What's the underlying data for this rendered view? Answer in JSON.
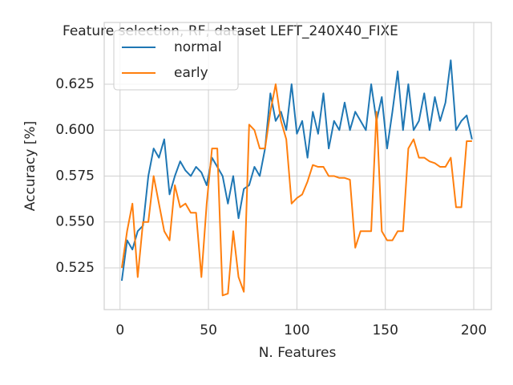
{
  "chart_data": {
    "type": "line",
    "title": "Feature selection, RF, dataset LEFT_240X40_FIXE",
    "x_label": "N. Features",
    "y_label": "Accuracy [%]",
    "x": [
      1,
      4,
      7,
      10,
      13,
      16,
      19,
      22,
      25,
      28,
      31,
      34,
      37,
      40,
      43,
      46,
      49,
      52,
      55,
      58,
      61,
      64,
      67,
      70,
      73,
      76,
      79,
      82,
      85,
      88,
      91,
      94,
      97,
      100,
      103,
      106,
      109,
      112,
      115,
      118,
      121,
      124,
      127,
      130,
      133,
      136,
      139,
      142,
      145,
      148,
      151,
      154,
      157,
      160,
      163,
      166,
      169,
      172,
      175,
      178,
      181,
      184,
      187,
      190,
      193,
      196,
      199
    ],
    "series": [
      {
        "name": "normal",
        "color": "#1f77b4",
        "values": [
          0.518,
          0.54,
          0.535,
          0.545,
          0.548,
          0.575,
          0.59,
          0.585,
          0.595,
          0.565,
          0.575,
          0.583,
          0.578,
          0.575,
          0.58,
          0.577,
          0.57,
          0.585,
          0.58,
          0.575,
          0.56,
          0.575,
          0.552,
          0.568,
          0.57,
          0.58,
          0.575,
          0.59,
          0.62,
          0.605,
          0.61,
          0.6,
          0.625,
          0.598,
          0.605,
          0.585,
          0.61,
          0.598,
          0.62,
          0.59,
          0.605,
          0.6,
          0.615,
          0.6,
          0.61,
          0.605,
          0.6,
          0.625,
          0.605,
          0.618,
          0.59,
          0.61,
          0.632,
          0.6,
          0.625,
          0.6,
          0.605,
          0.62,
          0.6,
          0.618,
          0.605,
          0.615,
          0.638,
          0.6,
          0.605,
          0.608,
          0.595
        ]
      },
      {
        "name": "early",
        "color": "#ff7f0e",
        "values": [
          0.525,
          0.545,
          0.56,
          0.52,
          0.55,
          0.55,
          0.575,
          0.56,
          0.545,
          0.54,
          0.57,
          0.558,
          0.56,
          0.555,
          0.555,
          0.52,
          0.56,
          0.59,
          0.59,
          0.51,
          0.511,
          0.545,
          0.52,
          0.512,
          0.603,
          0.6,
          0.59,
          0.59,
          0.61,
          0.625,
          0.605,
          0.595,
          0.56,
          0.563,
          0.565,
          0.572,
          0.581,
          0.58,
          0.58,
          0.575,
          0.575,
          0.574,
          0.574,
          0.573,
          0.536,
          0.545,
          0.545,
          0.545,
          0.61,
          0.545,
          0.54,
          0.54,
          0.545,
          0.545,
          0.59,
          0.595,
          0.585,
          0.585,
          0.583,
          0.582,
          0.58,
          0.58,
          0.585,
          0.558,
          0.558,
          0.594,
          0.594
        ]
      }
    ],
    "xlim": [
      -8.95,
      209.95
    ],
    "ylim": [
      0.5023,
      0.6586
    ],
    "xticks": [
      0,
      50,
      100,
      150,
      200
    ],
    "yticks": [
      0.525,
      {
        "value": 0.55,
        "label": "0.550"
      },
      {
        "value": 0.575,
        "label": "0.575"
      },
      {
        "value": 0.6,
        "label": "0.600"
      },
      {
        "value": 0.625,
        "label": "0.625"
      }
    ],
    "grid": true,
    "legend": "upper left"
  }
}
